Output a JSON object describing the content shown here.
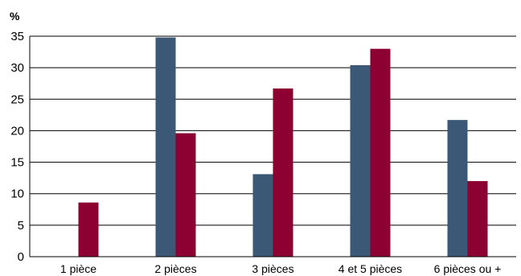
{
  "chart_data": {
    "type": "bar",
    "unit_label": "%",
    "categories": [
      "1 pièce",
      "2 pièces",
      "3 pièces",
      "4 et 5 pièces",
      "6 pièces ou +"
    ],
    "series": [
      {
        "values": [
          0,
          34.8,
          13.1,
          30.4,
          21.7
        ],
        "color": "#3b5877"
      },
      {
        "values": [
          8.6,
          19.6,
          26.7,
          33.0,
          12.0
        ],
        "color": "#8c0032"
      }
    ],
    "yticks": [
      "0",
      "5",
      "10",
      "15",
      "20",
      "25",
      "30",
      "35"
    ],
    "ylim": [
      0,
      35
    ],
    "grid": true,
    "legend": "none"
  }
}
